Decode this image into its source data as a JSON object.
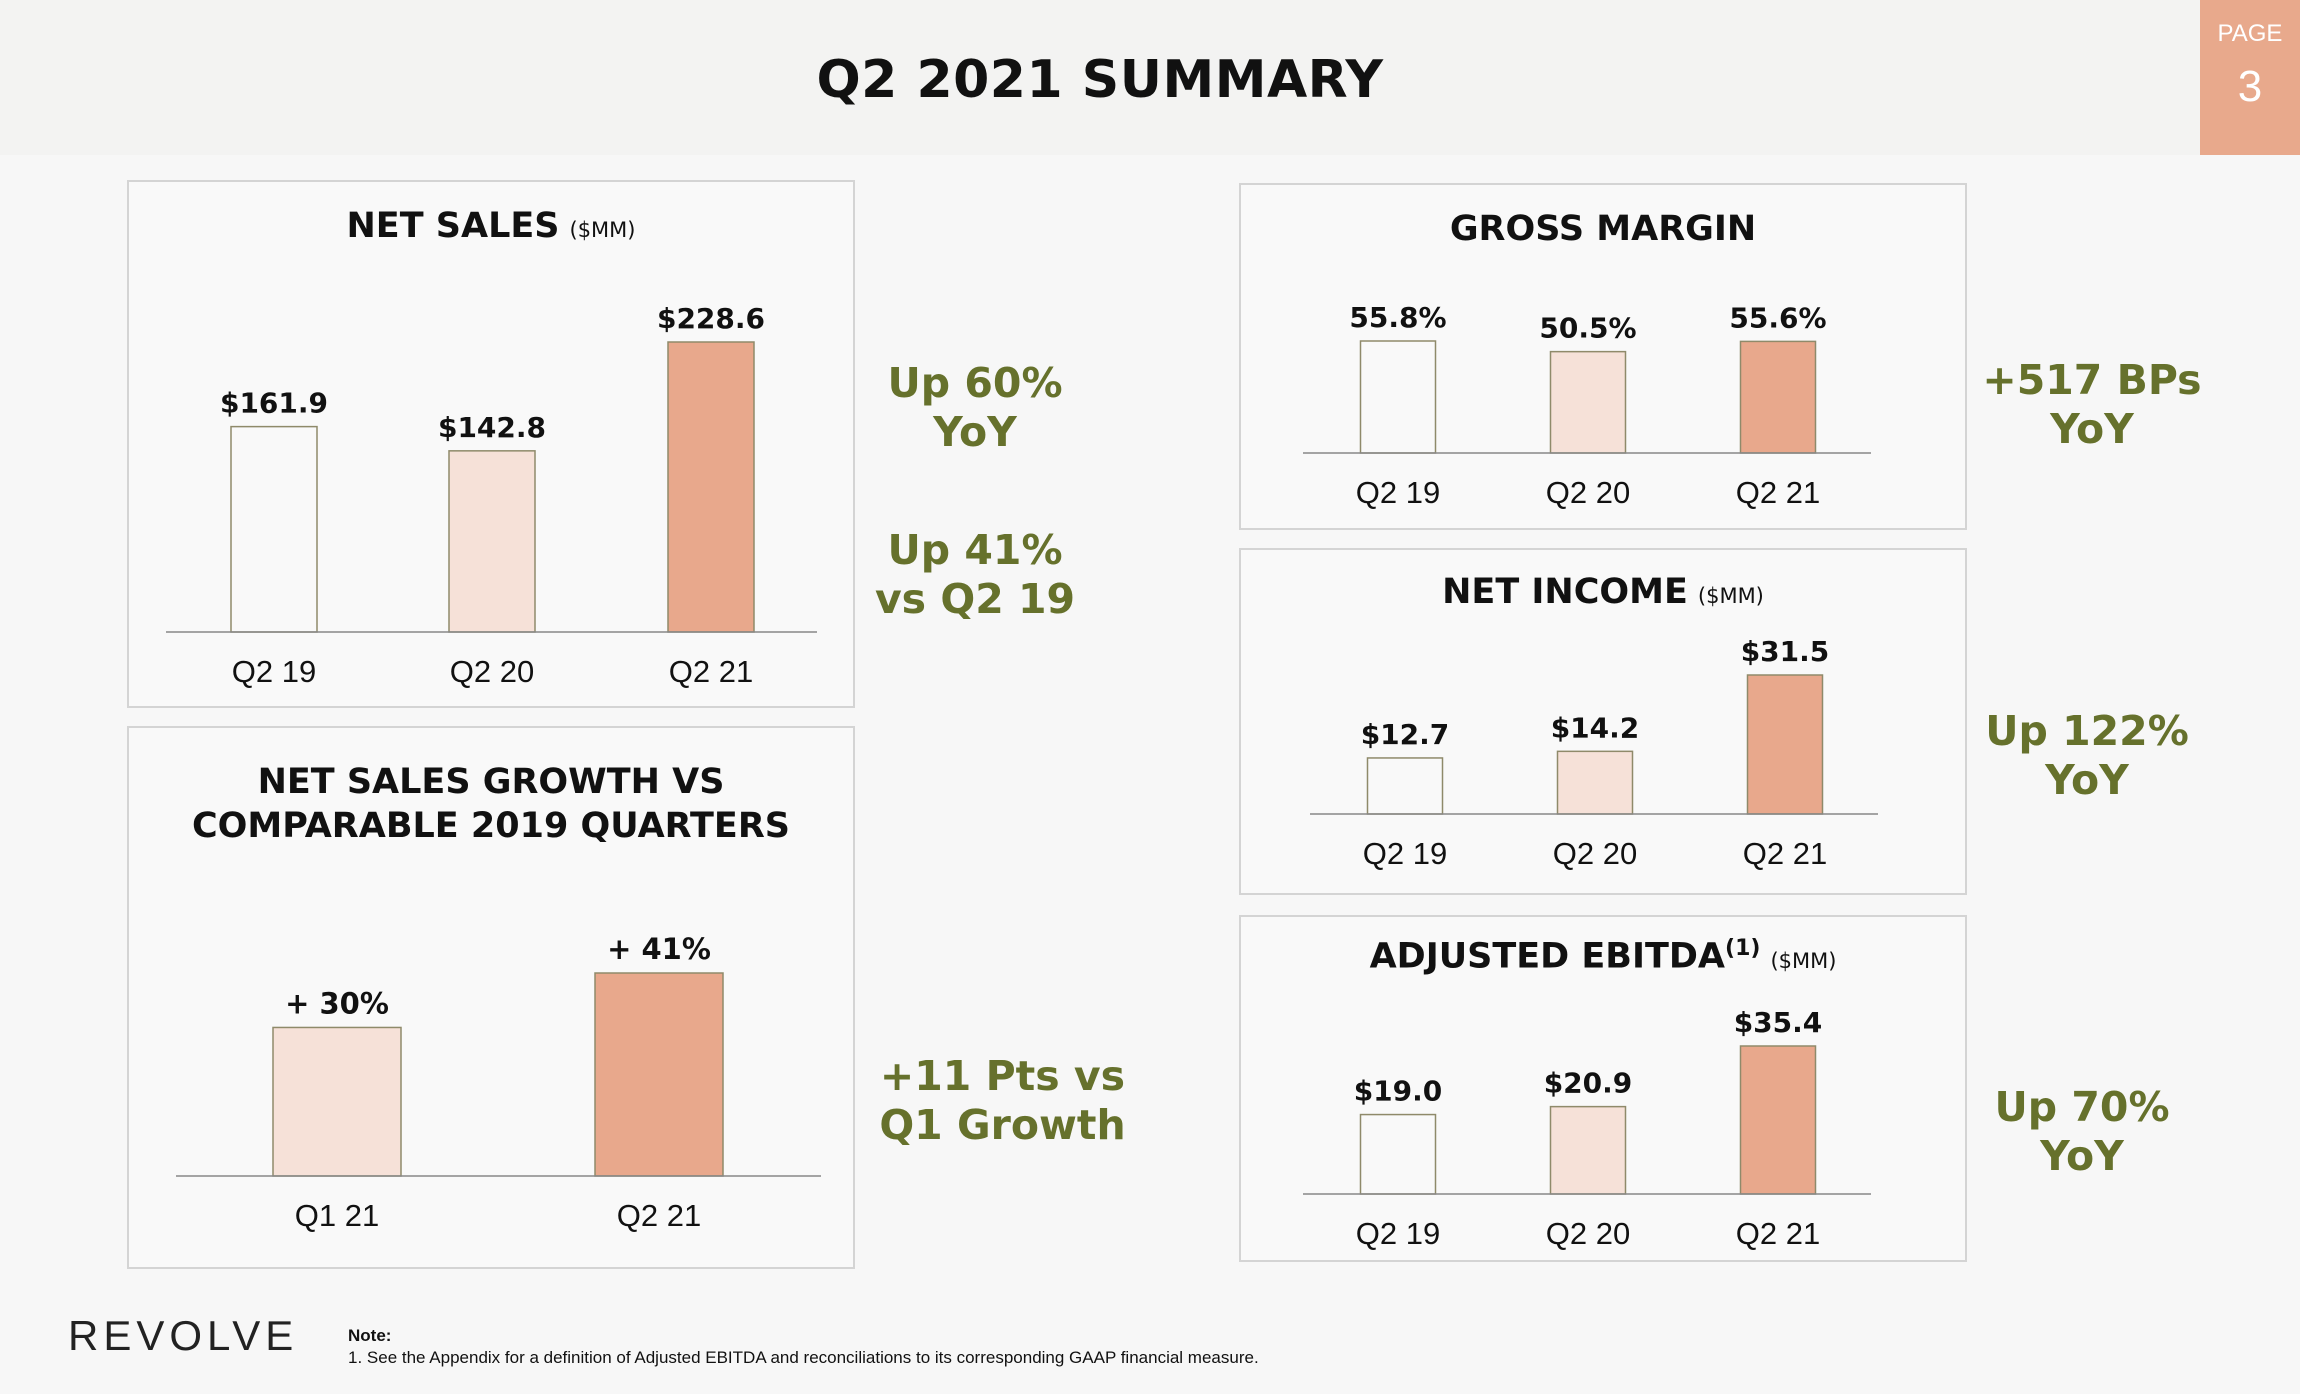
{
  "header": {
    "title": "Q2 2021 SUMMARY",
    "page_label": "PAGE",
    "page_number": "3"
  },
  "colors": {
    "bar_light": "#f9f9f9",
    "bar_mid": "#f6e1d8",
    "bar_dark": "#e8a88c",
    "bar_stroke": "#8f8a6a",
    "callout": "#66712c",
    "accent": "#e8a98c"
  },
  "callouts": {
    "net_sales_yoy": "Up 60%\nYoY",
    "net_sales_vs19": "Up 41%\nvs Q2 19",
    "growth_pts": "+11 Pts vs\nQ1 Growth",
    "gross_margin_bps": "+517 BPs\nYoY",
    "net_income_yoy": "Up 122%\nYoY",
    "ebitda_yoy": "Up 70%\nYoY"
  },
  "footer": {
    "logo": "REVOLVE",
    "note_label": "Note:",
    "note_text": "1. See the Appendix for a definition of Adjusted EBITDA and reconciliations to its corresponding GAAP financial measure."
  },
  "chart_data": [
    {
      "id": "net_sales",
      "type": "bar",
      "title": "NET SALES",
      "unit": "($MM)",
      "categories": [
        "Q2 19",
        "Q2 20",
        "Q2 21"
      ],
      "values": [
        161.9,
        142.8,
        228.6
      ],
      "labels": [
        "$161.9",
        "$142.8",
        "$228.6"
      ],
      "ylim": [
        0,
        228.6
      ]
    },
    {
      "id": "growth",
      "type": "bar",
      "title": "NET SALES GROWTH VS\nCOMPARABLE 2019 QUARTERS",
      "unit": "",
      "categories": [
        "Q1 21",
        "Q2 21"
      ],
      "values": [
        30,
        41
      ],
      "labels": [
        "+ 30%",
        "+ 41%"
      ],
      "ylim": [
        0,
        41
      ]
    },
    {
      "id": "gross_margin",
      "type": "bar",
      "title": "GROSS MARGIN",
      "unit": "",
      "categories": [
        "Q2 19",
        "Q2 20",
        "Q2 21"
      ],
      "values": [
        55.8,
        50.5,
        55.6
      ],
      "labels": [
        "55.8%",
        "50.5%",
        "55.6%"
      ],
      "ylim": [
        0,
        55.8
      ]
    },
    {
      "id": "net_income",
      "type": "bar",
      "title": "NET INCOME",
      "unit": "($MM)",
      "categories": [
        "Q2 19",
        "Q2 20",
        "Q2 21"
      ],
      "values": [
        12.7,
        14.2,
        31.5
      ],
      "labels": [
        "$12.7",
        "$14.2",
        "$31.5"
      ],
      "ylim": [
        0,
        31.5
      ]
    },
    {
      "id": "adj_ebitda",
      "type": "bar",
      "title": "ADJUSTED EBITDA",
      "title_sup": "(1)",
      "unit": "($MM)",
      "categories": [
        "Q2 19",
        "Q2 20",
        "Q2 21"
      ],
      "values": [
        19.0,
        20.9,
        35.4
      ],
      "labels": [
        "$19.0",
        "$20.9",
        "$35.4"
      ],
      "ylim": [
        0,
        35.4
      ]
    }
  ]
}
